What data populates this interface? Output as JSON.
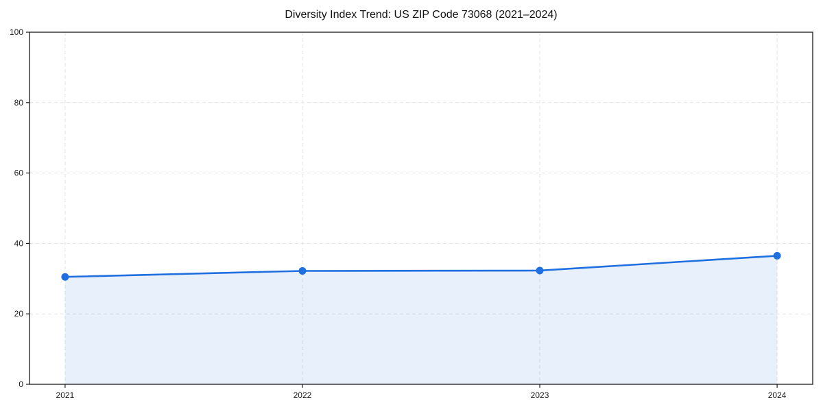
{
  "page": {
    "background": "#ffffff"
  },
  "chart_data": {
    "type": "line",
    "title": "Diversity Index Trend: US ZIP Code 73068 (2021–2024)",
    "x": [
      2021,
      2022,
      2023,
      2024
    ],
    "series": [
      {
        "name": "Diversity Index",
        "values": [
          30.5,
          32.2,
          32.3,
          36.5
        ]
      }
    ],
    "xlabel": "",
    "ylabel": "",
    "xticks": [
      2021,
      2022,
      2023,
      2024
    ],
    "yticks": [
      0,
      20,
      40,
      60,
      80,
      100
    ],
    "xlim": [
      2020.85,
      2024.15
    ],
    "ylim": [
      0,
      100
    ],
    "grid": true,
    "grid_style": "dashed",
    "legend_position": "none",
    "area_fill": true,
    "marker": "circle",
    "colors": {
      "line": "#1f6fe0",
      "marker": "#1f6fe0",
      "area_fill": "rgba(31,111,224,0.10)",
      "grid": "#e2e2e2",
      "spine": "#1a1a1a",
      "tick_text": "#1a1a1a",
      "title_text": "#111111"
    }
  }
}
